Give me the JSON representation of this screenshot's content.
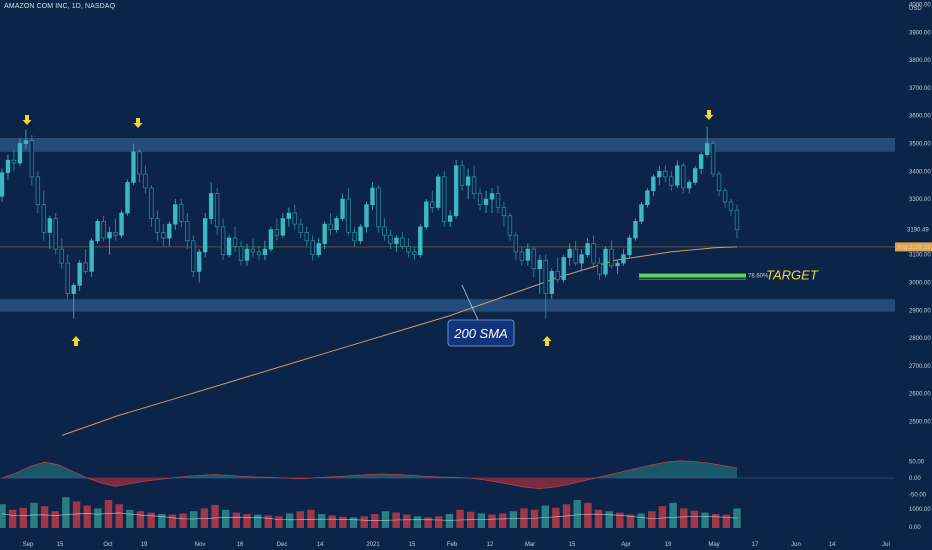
{
  "header": {
    "title": "AMAZON COM INC, 1D, NASDAQ"
  },
  "annotations": {
    "sma_label": "200 SMA",
    "target_label": "TARGET",
    "fib_level": "78.60%",
    "currency": "USD"
  },
  "colors": {
    "background": "#0b2447",
    "zone": "#2c5a8c",
    "bull": "#2fa6b2",
    "bear": "#2fa6b2",
    "sma": "#c89a6a",
    "arrow": "#f5d33a",
    "target": "#5fd35a",
    "price_tag": "#e9a441",
    "current_tag": "#d7dde8",
    "osc_pos": "#1f6f78",
    "osc_neg": "#8a2438",
    "vol_up": "#2a8a8a",
    "vol_down": "#b03a48"
  },
  "price_axis": {
    "ticks": [
      "4000.00",
      "3900.00",
      "3800.00",
      "3700.00",
      "3600.00",
      "3500.00",
      "3400.00",
      "3300.00",
      "3100.00",
      "3000.00",
      "2900.00",
      "2800.00",
      "2700.00",
      "2600.00",
      "2500.00"
    ],
    "current_price_label": "3190.49",
    "sma_price_label": "3128.59",
    "sma_tag_prefix": "Avg"
  },
  "time_axis": {
    "labels": [
      "Sep",
      "15",
      "Oct",
      "19",
      "Nov",
      "16",
      "Dec",
      "14",
      "2021",
      "15",
      "Feb",
      "12",
      "Mar",
      "15",
      "Apr",
      "19",
      "May",
      "17",
      "Jun",
      "14",
      "Jul"
    ]
  },
  "oscillator": {
    "ticks": [
      "50.00",
      "0.00",
      "-50.00"
    ]
  },
  "volume": {
    "ticks": [
      "1000.00",
      "0.00"
    ]
  },
  "chart_data": {
    "type": "candlestick",
    "title": "AMAZON COM INC, 1D, NASDAQ",
    "ylim": [
      2400,
      4000
    ],
    "zones": [
      {
        "name": "resistance",
        "from": 3470,
        "to": 3520
      },
      {
        "name": "support",
        "from": 2895,
        "to": 2940
      }
    ],
    "target_level": 3025,
    "x_labels": [
      "Sep",
      "15",
      "Oct",
      "19",
      "Nov",
      "16",
      "Dec",
      "14",
      "2021",
      "15",
      "Feb",
      "12",
      "Mar",
      "15",
      "Apr",
      "19",
      "May",
      "17",
      "Jun",
      "14",
      "Jul"
    ],
    "candles": [
      [
        3310,
        3410,
        3290,
        3395
      ],
      [
        3395,
        3460,
        3370,
        3440
      ],
      [
        3440,
        3475,
        3400,
        3430
      ],
      [
        3430,
        3520,
        3420,
        3500
      ],
      [
        3500,
        3550,
        3480,
        3510
      ],
      [
        3510,
        3530,
        3350,
        3380
      ],
      [
        3380,
        3400,
        3250,
        3280
      ],
      [
        3280,
        3330,
        3150,
        3180
      ],
      [
        3180,
        3240,
        3120,
        3230
      ],
      [
        3230,
        3250,
        3100,
        3120
      ],
      [
        3120,
        3160,
        3050,
        3070
      ],
      [
        3070,
        3100,
        2940,
        2960
      ],
      [
        2960,
        3000,
        2870,
        2990
      ],
      [
        2990,
        3080,
        2970,
        3070
      ],
      [
        3070,
        3120,
        3030,
        3040
      ],
      [
        3040,
        3160,
        3020,
        3150
      ],
      [
        3150,
        3230,
        3140,
        3220
      ],
      [
        3220,
        3240,
        3150,
        3160
      ],
      [
        3160,
        3200,
        3100,
        3180
      ],
      [
        3180,
        3230,
        3150,
        3170
      ],
      [
        3170,
        3260,
        3160,
        3250
      ],
      [
        3250,
        3370,
        3240,
        3360
      ],
      [
        3360,
        3500,
        3350,
        3470
      ],
      [
        3470,
        3480,
        3360,
        3390
      ],
      [
        3390,
        3420,
        3320,
        3340
      ],
      [
        3340,
        3350,
        3200,
        3230
      ],
      [
        3230,
        3260,
        3150,
        3180
      ],
      [
        3180,
        3210,
        3130,
        3160
      ],
      [
        3160,
        3220,
        3130,
        3210
      ],
      [
        3210,
        3300,
        3190,
        3280
      ],
      [
        3280,
        3300,
        3200,
        3220
      ],
      [
        3220,
        3250,
        3120,
        3150
      ],
      [
        3150,
        3170,
        3020,
        3040
      ],
      [
        3040,
        3120,
        3000,
        3110
      ],
      [
        3110,
        3250,
        3090,
        3230
      ],
      [
        3230,
        3360,
        3210,
        3320
      ],
      [
        3320,
        3340,
        3170,
        3200
      ],
      [
        3200,
        3230,
        3080,
        3100
      ],
      [
        3100,
        3170,
        3090,
        3160
      ],
      [
        3160,
        3200,
        3110,
        3130
      ],
      [
        3130,
        3150,
        3060,
        3080
      ],
      [
        3080,
        3140,
        3060,
        3120
      ],
      [
        3120,
        3160,
        3090,
        3110
      ],
      [
        3110,
        3130,
        3080,
        3100
      ],
      [
        3100,
        3150,
        3080,
        3120
      ],
      [
        3120,
        3200,
        3110,
        3190
      ],
      [
        3190,
        3230,
        3150,
        3170
      ],
      [
        3170,
        3250,
        3160,
        3230
      ],
      [
        3230,
        3270,
        3200,
        3250
      ],
      [
        3250,
        3280,
        3190,
        3210
      ],
      [
        3210,
        3230,
        3160,
        3180
      ],
      [
        3180,
        3200,
        3130,
        3150
      ],
      [
        3150,
        3170,
        3080,
        3100
      ],
      [
        3100,
        3160,
        3090,
        3140
      ],
      [
        3140,
        3220,
        3120,
        3210
      ],
      [
        3210,
        3250,
        3170,
        3190
      ],
      [
        3190,
        3240,
        3180,
        3230
      ],
      [
        3230,
        3320,
        3220,
        3300
      ],
      [
        3300,
        3340,
        3170,
        3180
      ],
      [
        3180,
        3200,
        3130,
        3150
      ],
      [
        3150,
        3210,
        3140,
        3200
      ],
      [
        3200,
        3290,
        3180,
        3280
      ],
      [
        3280,
        3360,
        3260,
        3340
      ],
      [
        3340,
        3350,
        3180,
        3200
      ],
      [
        3200,
        3230,
        3150,
        3170
      ],
      [
        3170,
        3190,
        3120,
        3140
      ],
      [
        3140,
        3170,
        3110,
        3160
      ],
      [
        3160,
        3180,
        3120,
        3130
      ],
      [
        3130,
        3160,
        3090,
        3110
      ],
      [
        3110,
        3130,
        3080,
        3100
      ],
      [
        3100,
        3210,
        3090,
        3200
      ],
      [
        3200,
        3300,
        3190,
        3290
      ],
      [
        3290,
        3330,
        3250,
        3270
      ],
      [
        3270,
        3390,
        3260,
        3380
      ],
      [
        3380,
        3400,
        3200,
        3220
      ],
      [
        3220,
        3260,
        3200,
        3240
      ],
      [
        3240,
        3440,
        3230,
        3420
      ],
      [
        3420,
        3440,
        3330,
        3350
      ],
      [
        3350,
        3410,
        3300,
        3380
      ],
      [
        3380,
        3420,
        3300,
        3320
      ],
      [
        3320,
        3340,
        3260,
        3280
      ],
      [
        3280,
        3330,
        3250,
        3300
      ],
      [
        3300,
        3340,
        3250,
        3320
      ],
      [
        3320,
        3350,
        3250,
        3270
      ],
      [
        3270,
        3290,
        3200,
        3240
      ],
      [
        3240,
        3250,
        3150,
        3170
      ],
      [
        3170,
        3180,
        3080,
        3110
      ],
      [
        3110,
        3130,
        3060,
        3080
      ],
      [
        3080,
        3140,
        3060,
        3120
      ],
      [
        3120,
        3130,
        3020,
        3050
      ],
      [
        3050,
        3100,
        2960,
        3080
      ],
      [
        3080,
        3100,
        2870,
        2960
      ],
      [
        2960,
        3050,
        2940,
        3040
      ],
      [
        3040,
        3090,
        3000,
        3010
      ],
      [
        3010,
        3100,
        3000,
        3090
      ],
      [
        3090,
        3140,
        3060,
        3120
      ],
      [
        3120,
        3150,
        3060,
        3070
      ],
      [
        3070,
        3120,
        3040,
        3100
      ],
      [
        3100,
        3160,
        3090,
        3140
      ],
      [
        3140,
        3170,
        3050,
        3070
      ],
      [
        3070,
        3090,
        3010,
        3030
      ],
      [
        3030,
        3130,
        3020,
        3120
      ],
      [
        3120,
        3150,
        3050,
        3060
      ],
      [
        3060,
        3080,
        3030,
        3070
      ],
      [
        3070,
        3120,
        3060,
        3100
      ],
      [
        3100,
        3170,
        3090,
        3160
      ],
      [
        3160,
        3230,
        3150,
        3220
      ],
      [
        3220,
        3290,
        3210,
        3280
      ],
      [
        3280,
        3340,
        3270,
        3330
      ],
      [
        3330,
        3390,
        3310,
        3380
      ],
      [
        3380,
        3420,
        3350,
        3400
      ],
      [
        3400,
        3420,
        3360,
        3380
      ],
      [
        3380,
        3400,
        3330,
        3350
      ],
      [
        3350,
        3440,
        3340,
        3420
      ],
      [
        3420,
        3430,
        3320,
        3340
      ],
      [
        3340,
        3370,
        3320,
        3360
      ],
      [
        3360,
        3420,
        3350,
        3410
      ],
      [
        3410,
        3470,
        3390,
        3460
      ],
      [
        3460,
        3560,
        3450,
        3500
      ],
      [
        3500,
        3510,
        3380,
        3390
      ],
      [
        3390,
        3400,
        3310,
        3330
      ],
      [
        3330,
        3340,
        3270,
        3290
      ],
      [
        3290,
        3300,
        3240,
        3260
      ],
      [
        3260,
        3280,
        3160,
        3190
      ]
    ],
    "sma_200": [
      [
        0,
        2450
      ],
      [
        10,
        2520
      ],
      [
        20,
        2580
      ],
      [
        30,
        2640
      ],
      [
        40,
        2700
      ],
      [
        50,
        2760
      ],
      [
        60,
        2820
      ],
      [
        70,
        2880
      ],
      [
        80,
        2950
      ],
      [
        90,
        3020
      ],
      [
        100,
        3080
      ],
      [
        110,
        3110
      ],
      [
        118,
        3125
      ],
      [
        122,
        3128
      ]
    ],
    "oscillator": [
      0,
      15,
      35,
      48,
      40,
      20,
      0,
      -15,
      -25,
      -18,
      -10,
      -5,
      0,
      5,
      8,
      10,
      8,
      5,
      3,
      2,
      0,
      -2,
      0,
      3,
      5,
      8,
      10,
      12,
      10,
      8,
      5,
      3,
      2,
      0,
      -5,
      -12,
      -20,
      -28,
      -32,
      -28,
      -20,
      -10,
      0,
      10,
      20,
      30,
      40,
      48,
      52,
      50,
      45,
      38,
      30
    ],
    "volume": [
      850,
      650,
      720,
      900,
      780,
      600,
      1100,
      950,
      800,
      700,
      1000,
      850,
      650,
      600,
      550,
      500,
      480,
      520,
      600,
      700,
      820,
      650,
      550,
      500,
      480,
      450,
      420,
      520,
      600,
      650,
      500,
      450,
      400,
      380,
      420,
      500,
      600,
      550,
      480,
      420,
      380,
      420,
      500,
      650,
      580,
      520,
      480,
      520,
      600,
      700,
      650,
      800,
      720,
      850,
      1000,
      900,
      650,
      600,
      550,
      480,
      520,
      600,
      780,
      900,
      700,
      620,
      550,
      500,
      480,
      700
    ]
  }
}
